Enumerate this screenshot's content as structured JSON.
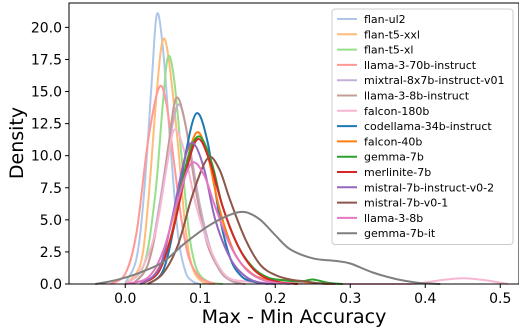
{
  "chart_data": {
    "type": "line",
    "xlabel": "Max - Min Accuracy",
    "ylabel": "Density",
    "xlim": [
      -0.075,
      0.525
    ],
    "ylim": [
      0,
      21.9
    ],
    "xticks": [
      0.0,
      0.1,
      0.2,
      0.3,
      0.4,
      0.5
    ],
    "xtick_labels": [
      "0.0",
      "0.1",
      "0.2",
      "0.3",
      "0.4",
      "0.5"
    ],
    "yticks": [
      0.0,
      2.5,
      5.0,
      7.5,
      10.0,
      12.5,
      15.0,
      17.5,
      20.0
    ],
    "ytick_labels": [
      "0.0",
      "2.5",
      "5.0",
      "7.5",
      "10.0",
      "12.5",
      "15.0",
      "17.5",
      "20.0"
    ],
    "grid": false,
    "legend_position": "top-right",
    "series": [
      {
        "name": "flan-ul2",
        "color": "#aec7e8",
        "points": [
          [
            0.0,
            0.1
          ],
          [
            0.015,
            2.0
          ],
          [
            0.025,
            7.0
          ],
          [
            0.035,
            15.5
          ],
          [
            0.042,
            21.0
          ],
          [
            0.05,
            18.5
          ],
          [
            0.06,
            11.0
          ],
          [
            0.07,
            4.0
          ],
          [
            0.08,
            1.0
          ],
          [
            0.09,
            0.2
          ],
          [
            0.1,
            0.0
          ]
        ]
      },
      {
        "name": "flan-t5-xxl",
        "color": "#ffbb78",
        "points": [
          [
            0.0,
            0.0
          ],
          [
            0.02,
            1.5
          ],
          [
            0.03,
            6.0
          ],
          [
            0.042,
            15.0
          ],
          [
            0.05,
            19.0
          ],
          [
            0.058,
            17.5
          ],
          [
            0.07,
            11.0
          ],
          [
            0.08,
            4.5
          ],
          [
            0.09,
            1.2
          ],
          [
            0.105,
            0.1
          ],
          [
            0.12,
            0.0
          ]
        ]
      },
      {
        "name": "flan-t5-xl",
        "color": "#98df8a",
        "points": [
          [
            0.0,
            0.0
          ],
          [
            0.025,
            1.5
          ],
          [
            0.04,
            7.0
          ],
          [
            0.05,
            14.0
          ],
          [
            0.057,
            17.7
          ],
          [
            0.065,
            16.0
          ],
          [
            0.075,
            10.0
          ],
          [
            0.085,
            4.0
          ],
          [
            0.095,
            1.2
          ],
          [
            0.11,
            0.2
          ],
          [
            0.13,
            0.0
          ]
        ]
      },
      {
        "name": "llama-3-70b-instruct",
        "color": "#ff9896",
        "points": [
          [
            -0.02,
            0.0
          ],
          [
            0.0,
            0.8
          ],
          [
            0.015,
            4.0
          ],
          [
            0.03,
            11.0
          ],
          [
            0.045,
            15.3
          ],
          [
            0.055,
            14.0
          ],
          [
            0.065,
            9.5
          ],
          [
            0.075,
            5.0
          ],
          [
            0.085,
            2.0
          ],
          [
            0.1,
            0.5
          ],
          [
            0.12,
            0.0
          ]
        ]
      },
      {
        "name": "mixtral-8x7b-instruct-v01",
        "color": "#c5b0d5",
        "points": [
          [
            0.01,
            0.0
          ],
          [
            0.03,
            1.5
          ],
          [
            0.045,
            6.0
          ],
          [
            0.06,
            11.5
          ],
          [
            0.072,
            14.0
          ],
          [
            0.085,
            11.0
          ],
          [
            0.1,
            6.0
          ],
          [
            0.115,
            2.5
          ],
          [
            0.13,
            0.7
          ],
          [
            0.15,
            0.0
          ]
        ]
      },
      {
        "name": "llama-3-8b-instruct",
        "color": "#c49c94",
        "points": [
          [
            0.01,
            0.0
          ],
          [
            0.03,
            1.5
          ],
          [
            0.045,
            5.5
          ],
          [
            0.058,
            11.0
          ],
          [
            0.068,
            14.5
          ],
          [
            0.08,
            12.5
          ],
          [
            0.095,
            7.0
          ],
          [
            0.11,
            3.0
          ],
          [
            0.13,
            0.8
          ],
          [
            0.15,
            0.1
          ],
          [
            0.16,
            0.0
          ]
        ]
      },
      {
        "name": "falcon-180b",
        "color": "#f7b6d2",
        "points": [
          [
            0.0,
            0.0
          ],
          [
            0.02,
            1.0
          ],
          [
            0.04,
            4.0
          ],
          [
            0.055,
            9.0
          ],
          [
            0.065,
            12.0
          ],
          [
            0.078,
            10.5
          ],
          [
            0.095,
            6.0
          ],
          [
            0.115,
            2.5
          ],
          [
            0.135,
            0.6
          ],
          [
            0.16,
            0.2
          ],
          [
            0.2,
            0.1
          ],
          [
            0.24,
            0.1
          ],
          [
            0.28,
            0.0
          ],
          [
            0.38,
            0.0
          ],
          [
            0.42,
            0.3
          ],
          [
            0.45,
            0.45
          ],
          [
            0.48,
            0.3
          ],
          [
            0.51,
            0.0
          ]
        ]
      },
      {
        "name": "codellama-34b-instruct",
        "color": "#1f77b4",
        "points": [
          [
            0.03,
            0.0
          ],
          [
            0.05,
            1.0
          ],
          [
            0.065,
            4.5
          ],
          [
            0.08,
            10.0
          ],
          [
            0.095,
            13.3
          ],
          [
            0.11,
            11.0
          ],
          [
            0.125,
            5.5
          ],
          [
            0.14,
            2.0
          ],
          [
            0.155,
            0.6
          ],
          [
            0.17,
            0.2
          ],
          [
            0.19,
            0.0
          ]
        ]
      },
      {
        "name": "falcon-40b",
        "color": "#ff7f0e",
        "points": [
          [
            0.02,
            0.0
          ],
          [
            0.04,
            0.8
          ],
          [
            0.06,
            3.5
          ],
          [
            0.078,
            8.5
          ],
          [
            0.095,
            11.8
          ],
          [
            0.11,
            10.0
          ],
          [
            0.125,
            6.0
          ],
          [
            0.145,
            2.5
          ],
          [
            0.165,
            1.0
          ],
          [
            0.185,
            0.4
          ],
          [
            0.22,
            0.3
          ],
          [
            0.25,
            0.1
          ],
          [
            0.27,
            0.0
          ]
        ]
      },
      {
        "name": "gemma-7b",
        "color": "#2ca02c",
        "points": [
          [
            0.02,
            0.0
          ],
          [
            0.045,
            1.0
          ],
          [
            0.065,
            4.5
          ],
          [
            0.082,
            9.5
          ],
          [
            0.098,
            11.5
          ],
          [
            0.115,
            9.5
          ],
          [
            0.13,
            6.0
          ],
          [
            0.15,
            3.0
          ],
          [
            0.17,
            1.3
          ],
          [
            0.19,
            0.5
          ],
          [
            0.21,
            0.3
          ],
          [
            0.235,
            0.2
          ],
          [
            0.25,
            0.35
          ],
          [
            0.27,
            0.1
          ],
          [
            0.29,
            0.0
          ]
        ]
      },
      {
        "name": "merlinite-7b",
        "color": "#d62728",
        "points": [
          [
            0.02,
            0.0
          ],
          [
            0.045,
            1.0
          ],
          [
            0.065,
            4.5
          ],
          [
            0.082,
            9.0
          ],
          [
            0.097,
            11.3
          ],
          [
            0.113,
            9.5
          ],
          [
            0.13,
            6.0
          ],
          [
            0.15,
            3.0
          ],
          [
            0.17,
            1.2
          ],
          [
            0.19,
            0.4
          ],
          [
            0.21,
            0.1
          ],
          [
            0.23,
            0.0
          ]
        ]
      },
      {
        "name": "mistral-7b-instruct-v0-2",
        "color": "#9467bd",
        "points": [
          [
            0.02,
            0.0
          ],
          [
            0.045,
            1.2
          ],
          [
            0.062,
            5.0
          ],
          [
            0.078,
            9.5
          ],
          [
            0.09,
            11.0
          ],
          [
            0.105,
            9.0
          ],
          [
            0.12,
            5.0
          ],
          [
            0.14,
            2.0
          ],
          [
            0.16,
            0.6
          ],
          [
            0.18,
            0.1
          ],
          [
            0.2,
            0.0
          ]
        ]
      },
      {
        "name": "mistral-7b-v0-1",
        "color": "#8c564b",
        "points": [
          [
            0.03,
            0.0
          ],
          [
            0.05,
            0.8
          ],
          [
            0.07,
            3.0
          ],
          [
            0.09,
            7.0
          ],
          [
            0.11,
            9.8
          ],
          [
            0.125,
            9.0
          ],
          [
            0.14,
            6.5
          ],
          [
            0.16,
            3.5
          ],
          [
            0.18,
            1.5
          ],
          [
            0.2,
            0.7
          ],
          [
            0.22,
            0.35
          ],
          [
            0.24,
            0.2
          ],
          [
            0.26,
            0.05
          ],
          [
            0.28,
            0.0
          ]
        ]
      },
      {
        "name": "llama-3-8b",
        "color": "#e377c2",
        "points": [
          [
            0.0,
            0.0
          ],
          [
            0.03,
            0.5
          ],
          [
            0.05,
            2.5
          ],
          [
            0.07,
            6.5
          ],
          [
            0.088,
            9.4
          ],
          [
            0.105,
            8.5
          ],
          [
            0.12,
            6.0
          ],
          [
            0.14,
            3.0
          ],
          [
            0.16,
            1.2
          ],
          [
            0.18,
            0.4
          ],
          [
            0.2,
            0.1
          ],
          [
            0.22,
            0.0
          ]
        ]
      },
      {
        "name": "gemma-7b-it",
        "color": "#7f7f7f",
        "points": [
          [
            -0.04,
            0.0
          ],
          [
            -0.02,
            0.2
          ],
          [
            0.0,
            0.5
          ],
          [
            0.02,
            0.9
          ],
          [
            0.05,
            1.7
          ],
          [
            0.08,
            3.2
          ],
          [
            0.11,
            4.5
          ],
          [
            0.14,
            5.4
          ],
          [
            0.16,
            5.6
          ],
          [
            0.18,
            5.0
          ],
          [
            0.2,
            3.8
          ],
          [
            0.22,
            2.7
          ],
          [
            0.25,
            2.0
          ],
          [
            0.28,
            1.8
          ],
          [
            0.3,
            1.6
          ],
          [
            0.33,
            0.9
          ],
          [
            0.36,
            0.4
          ],
          [
            0.39,
            0.1
          ],
          [
            0.42,
            0.0
          ]
        ]
      }
    ]
  }
}
